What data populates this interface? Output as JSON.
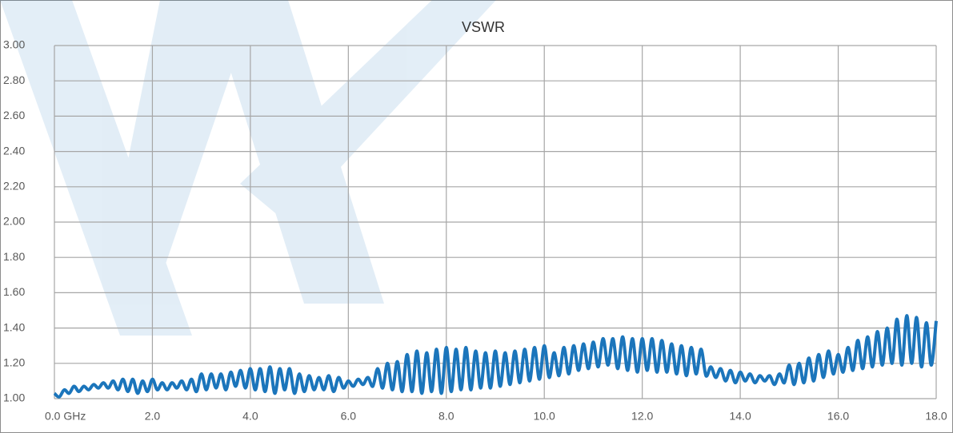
{
  "chart_data": {
    "type": "line",
    "title": "VSWR",
    "x": [
      0,
      0.1,
      0.2,
      0.3,
      0.4,
      0.5,
      0.6,
      0.7,
      0.8,
      0.9,
      1,
      1.1,
      1.2,
      1.3,
      1.4,
      1.5,
      1.6,
      1.7,
      1.8,
      1.9,
      2,
      2.1,
      2.2,
      2.3,
      2.4,
      2.5,
      2.6,
      2.7,
      2.8,
      2.9,
      3,
      3.1,
      3.2,
      3.3,
      3.4,
      3.5,
      3.6,
      3.7,
      3.8,
      3.9,
      4,
      4.1,
      4.2,
      4.3,
      4.4,
      4.5,
      4.6,
      4.7,
      4.8,
      4.9,
      5,
      5.1,
      5.2,
      5.3,
      5.4,
      5.5,
      5.6,
      5.7,
      5.8,
      5.9,
      6,
      6.1,
      6.2,
      6.3,
      6.4,
      6.5,
      6.6,
      6.7,
      6.8,
      6.9,
      7,
      7.1,
      7.2,
      7.3,
      7.4,
      7.5,
      7.6,
      7.7,
      7.8,
      7.9,
      8,
      8.1,
      8.2,
      8.3,
      8.4,
      8.5,
      8.6,
      8.7,
      8.8,
      8.9,
      9,
      9.1,
      9.2,
      9.3,
      9.4,
      9.5,
      9.6,
      9.7,
      9.8,
      9.9,
      10,
      10.1,
      10.2,
      10.3,
      10.4,
      10.5,
      10.6,
      10.7,
      10.8,
      10.9,
      11,
      11.1,
      11.2,
      11.3,
      11.4,
      11.5,
      11.6,
      11.7,
      11.8,
      11.9,
      12,
      12.1,
      12.2,
      12.3,
      12.4,
      12.5,
      12.6,
      12.7,
      12.8,
      12.9,
      13,
      13.1,
      13.2,
      13.3,
      13.4,
      13.5,
      13.6,
      13.7,
      13.8,
      13.9,
      14,
      14.1,
      14.2,
      14.3,
      14.4,
      14.5,
      14.6,
      14.7,
      14.8,
      14.9,
      15,
      15.1,
      15.2,
      15.3,
      15.4,
      15.5,
      15.6,
      15.7,
      15.8,
      15.9,
      16,
      16.1,
      16.2,
      16.3,
      16.4,
      16.5,
      16.6,
      16.7,
      16.8,
      16.9,
      17,
      17.1,
      17.2,
      17.3,
      17.4,
      17.5,
      17.6,
      17.7,
      17.8,
      17.9,
      18
    ],
    "series": [
      {
        "color": "#1b75bb",
        "values": [
          1.03,
          1.01,
          1.05,
          1.03,
          1.07,
          1.04,
          1.07,
          1.05,
          1.08,
          1.06,
          1.09,
          1.06,
          1.1,
          1.05,
          1.11,
          1.04,
          1.11,
          1.03,
          1.1,
          1.04,
          1.11,
          1.05,
          1.09,
          1.05,
          1.09,
          1.06,
          1.1,
          1.05,
          1.11,
          1.04,
          1.14,
          1.05,
          1.14,
          1.06,
          1.14,
          1.05,
          1.15,
          1.07,
          1.16,
          1.06,
          1.17,
          1.05,
          1.17,
          1.04,
          1.18,
          1.03,
          1.17,
          1.05,
          1.17,
          1.03,
          1.14,
          1.04,
          1.13,
          1.05,
          1.12,
          1.05,
          1.13,
          1.04,
          1.12,
          1.06,
          1.1,
          1.07,
          1.11,
          1.08,
          1.12,
          1.07,
          1.17,
          1.06,
          1.2,
          1.05,
          1.21,
          1.04,
          1.25,
          1.04,
          1.27,
          1.03,
          1.26,
          1.04,
          1.28,
          1.03,
          1.29,
          1.04,
          1.28,
          1.05,
          1.29,
          1.05,
          1.27,
          1.06,
          1.26,
          1.06,
          1.27,
          1.07,
          1.26,
          1.08,
          1.27,
          1.09,
          1.28,
          1.1,
          1.29,
          1.11,
          1.3,
          1.12,
          1.26,
          1.13,
          1.29,
          1.14,
          1.3,
          1.16,
          1.31,
          1.17,
          1.32,
          1.18,
          1.34,
          1.19,
          1.34,
          1.17,
          1.35,
          1.16,
          1.34,
          1.15,
          1.34,
          1.16,
          1.34,
          1.15,
          1.33,
          1.15,
          1.31,
          1.14,
          1.3,
          1.13,
          1.29,
          1.14,
          1.28,
          1.13,
          1.18,
          1.12,
          1.17,
          1.1,
          1.16,
          1.09,
          1.15,
          1.1,
          1.14,
          1.09,
          1.13,
          1.1,
          1.13,
          1.08,
          1.14,
          1.09,
          1.19,
          1.08,
          1.2,
          1.09,
          1.23,
          1.1,
          1.25,
          1.12,
          1.27,
          1.14,
          1.25,
          1.15,
          1.29,
          1.16,
          1.33,
          1.17,
          1.35,
          1.18,
          1.38,
          1.19,
          1.4,
          1.2,
          1.45,
          1.19,
          1.47,
          1.2,
          1.46,
          1.18,
          1.43,
          1.19,
          1.44
        ]
      }
    ],
    "xlim": [
      0,
      18
    ],
    "xticks": [
      {
        "value": 0,
        "label": "0.0  GHz"
      },
      {
        "value": 2,
        "label": "2.0"
      },
      {
        "value": 4,
        "label": "4.0"
      },
      {
        "value": 6,
        "label": "6.0"
      },
      {
        "value": 8,
        "label": "8.0"
      },
      {
        "value": 10,
        "label": "10.0"
      },
      {
        "value": 12,
        "label": "12.0"
      },
      {
        "value": 14,
        "label": "14.0"
      },
      {
        "value": 16,
        "label": "16.0"
      },
      {
        "value": 18,
        "label": "18.0"
      }
    ],
    "ylim": [
      1,
      3
    ],
    "yticks": [
      {
        "value": 1,
        "label": "1.00"
      },
      {
        "value": 1.2,
        "label": "1.20"
      },
      {
        "value": 1.4,
        "label": "1.40"
      },
      {
        "value": 1.6,
        "label": "1.60"
      },
      {
        "value": 1.8,
        "label": "1.80"
      },
      {
        "value": 2,
        "label": "2.00"
      },
      {
        "value": 2.2,
        "label": "2.20"
      },
      {
        "value": 2.4,
        "label": "2.40"
      },
      {
        "value": 2.6,
        "label": "2.60"
      },
      {
        "value": 2.8,
        "label": "2.80"
      },
      {
        "value": 3,
        "label": "3.00"
      }
    ],
    "grid": true
  }
}
